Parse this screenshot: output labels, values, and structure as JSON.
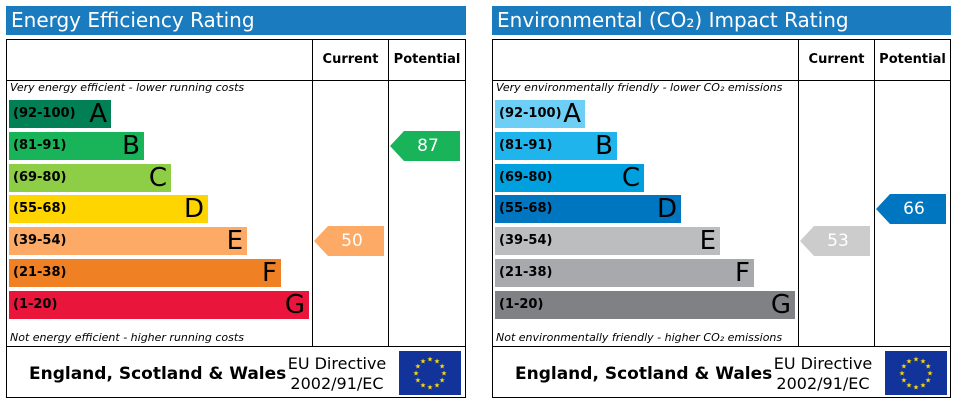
{
  "colors": {
    "title_bg": "#1a7bbf",
    "flag_bg": "#123399",
    "flag_star": "#ffdd00"
  },
  "chart_data": [
    {
      "type": "bar",
      "title": "Energy Efficiency Rating",
      "headers": {
        "current": "Current",
        "potential": "Potential"
      },
      "top_note": "Very energy efficient - lower running costs",
      "bottom_note": "Not energy efficient - higher running costs",
      "bands": [
        {
          "range": "(92-100)",
          "letter": "A",
          "color": "#008054"
        },
        {
          "range": "(81-91)",
          "letter": "B",
          "color": "#19b459"
        },
        {
          "range": "(69-80)",
          "letter": "C",
          "color": "#8dce46"
        },
        {
          "range": "(55-68)",
          "letter": "D",
          "color": "#ffd500"
        },
        {
          "range": "(39-54)",
          "letter": "E",
          "color": "#fcaa65"
        },
        {
          "range": "(21-38)",
          "letter": "F",
          "color": "#ef8023"
        },
        {
          "range": "(1-20)",
          "letter": "G",
          "color": "#e9153b"
        }
      ],
      "current": {
        "value": "50",
        "band": "E",
        "color": "#fcaa65"
      },
      "potential": {
        "value": "87",
        "band": "B",
        "color": "#19b459"
      },
      "footer": {
        "region": "England, Scotland & Wales",
        "directive_line1": "EU Directive",
        "directive_line2": "2002/91/EC"
      }
    },
    {
      "type": "bar",
      "title": "Environmental (CO₂) Impact Rating",
      "headers": {
        "current": "Current",
        "potential": "Potential"
      },
      "top_note": "Very environmentally friendly - lower CO₂ emissions",
      "bottom_note": "Not environmentally friendly - higher CO₂ emissions",
      "bands": [
        {
          "range": "(92-100)",
          "letter": "A",
          "color": "#6dcff6"
        },
        {
          "range": "(81-91)",
          "letter": "B",
          "color": "#1fb4ec"
        },
        {
          "range": "(69-80)",
          "letter": "C",
          "color": "#00a0df"
        },
        {
          "range": "(55-68)",
          "letter": "D",
          "color": "#0076c0"
        },
        {
          "range": "(39-54)",
          "letter": "E",
          "color": "#bbbdbf"
        },
        {
          "range": "(21-38)",
          "letter": "F",
          "color": "#a7a9ac"
        },
        {
          "range": "(1-20)",
          "letter": "G",
          "color": "#808184"
        }
      ],
      "current": {
        "value": "53",
        "band": "E",
        "color": "#cccccc"
      },
      "potential": {
        "value": "66",
        "band": "D",
        "color": "#0076c0"
      },
      "footer": {
        "region": "England, Scotland & Wales",
        "directive_line1": "EU Directive",
        "directive_line2": "2002/91/EC"
      }
    }
  ]
}
